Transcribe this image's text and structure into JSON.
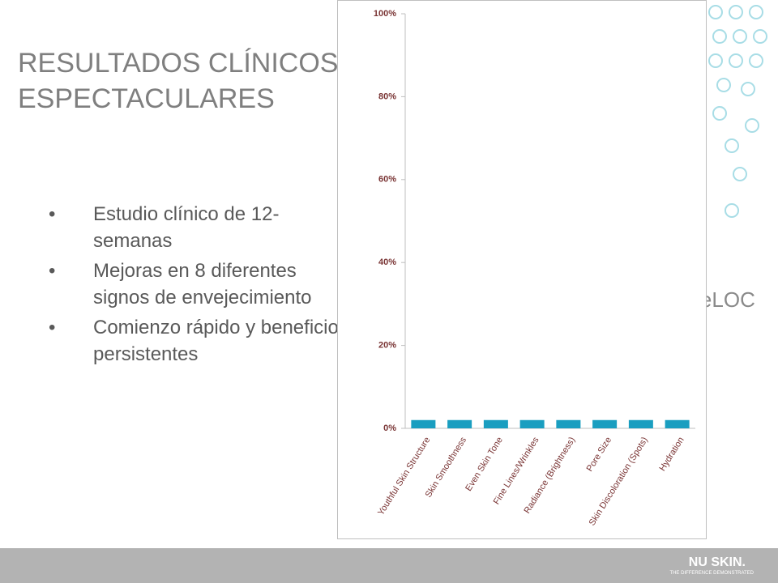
{
  "slide": {
    "title": "RESULTADOS CLÍNICOS ESPECTACULARES",
    "bullets": [
      "Estudio clínico de 12-semanas",
      "Mejoras en 8 diferentes signos de envejecimiento",
      "Comienzo rápido y beneficios persistentes"
    ],
    "brand": "ageLOC",
    "logo": "NU SKIN.",
    "tagline": "THE DIFFERENCE DEMONSTRATED"
  },
  "chart_data": {
    "type": "bar",
    "categories": [
      "Youthful Skin Structure",
      "Skin Smoothness",
      "Even Skin Tone",
      "Fine Lines/Wrinkles",
      "Radiance (Brightness)",
      "Pore Size",
      "Skin Discoloration (Spots)",
      "Hydration"
    ],
    "values": [
      2,
      2,
      2,
      2,
      2,
      2,
      2,
      2
    ],
    "color": "#1a9ec0",
    "ylim": [
      0,
      100
    ],
    "yticks": [
      {
        "value": 0,
        "label": "0%"
      },
      {
        "value": 20,
        "label": "20%"
      },
      {
        "value": 40,
        "label": "40%"
      },
      {
        "value": 60,
        "label": "60%"
      },
      {
        "value": 80,
        "label": "80%"
      },
      {
        "value": 100,
        "label": "100%"
      }
    ],
    "grid": false
  }
}
